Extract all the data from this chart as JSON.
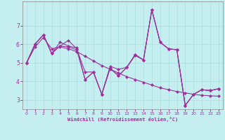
{
  "xlabel": "Windchill (Refroidissement éolien,°C)",
  "background_color": "#c5eef0",
  "line_color": "#993399",
  "grid_color": "#aadddd",
  "x_values": [
    0,
    1,
    2,
    3,
    4,
    5,
    6,
    7,
    8,
    9,
    10,
    11,
    12,
    13,
    14,
    15,
    16,
    17,
    18,
    19,
    20,
    21,
    22,
    23
  ],
  "line1": [
    5.0,
    6.0,
    6.5,
    5.5,
    6.1,
    5.9,
    5.8,
    4.1,
    4.5,
    3.3,
    4.8,
    4.65,
    4.75,
    5.45,
    5.15,
    7.85,
    6.1,
    5.75,
    5.7,
    2.7,
    3.3,
    3.55,
    3.5,
    3.6
  ],
  "line2": [
    5.0,
    6.0,
    6.5,
    5.5,
    5.9,
    6.2,
    5.75,
    4.5,
    4.5,
    3.3,
    4.7,
    4.3,
    4.75,
    5.4,
    5.15,
    7.85,
    6.1,
    5.75,
    5.7,
    2.7,
    3.3,
    3.55,
    3.5,
    3.6
  ],
  "line3": [
    5.0,
    6.0,
    6.5,
    5.5,
    5.9,
    5.85,
    5.7,
    4.1,
    4.5,
    3.3,
    4.7,
    4.3,
    4.75,
    5.4,
    5.15,
    7.85,
    6.1,
    5.75,
    5.7,
    2.7,
    3.3,
    3.55,
    3.5,
    3.6
  ],
  "line4": [
    5.0,
    5.85,
    6.35,
    5.75,
    5.85,
    5.75,
    5.6,
    5.35,
    5.1,
    4.85,
    4.65,
    4.45,
    4.25,
    4.1,
    3.95,
    3.8,
    3.65,
    3.55,
    3.45,
    3.38,
    3.3,
    3.25,
    3.22,
    3.2
  ],
  "ylim": [
    2.5,
    8.3
  ],
  "yticks": [
    3,
    4,
    5,
    6,
    7
  ],
  "xlim": [
    -0.5,
    23.5
  ],
  "xticks": [
    0,
    1,
    2,
    3,
    4,
    5,
    6,
    7,
    8,
    9,
    10,
    11,
    12,
    13,
    14,
    15,
    16,
    17,
    18,
    19,
    20,
    21,
    22,
    23
  ]
}
